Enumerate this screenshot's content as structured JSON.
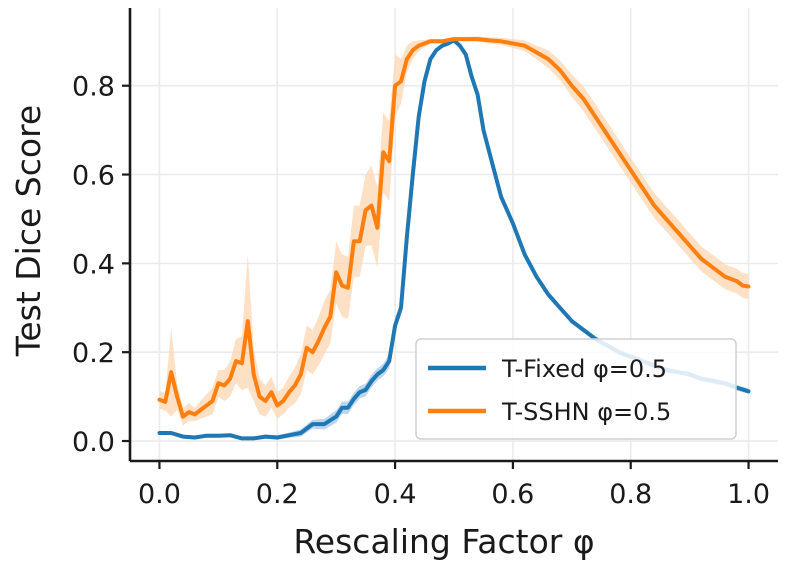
{
  "chart_data": {
    "type": "line",
    "title": "",
    "xlabel": "Rescaling Factor φ",
    "ylabel": "Test Dice Score",
    "xlim": [
      -0.05,
      1.05
    ],
    "ylim": [
      -0.045,
      0.975
    ],
    "xticks": [
      0.0,
      0.2,
      0.4,
      0.6,
      0.8,
      1.0
    ],
    "xtick_labels": [
      "0.0",
      "0.2",
      "0.4",
      "0.6",
      "0.8",
      "1.0"
    ],
    "yticks": [
      0.0,
      0.2,
      0.4,
      0.6,
      0.8
    ],
    "ytick_labels": [
      "0.0",
      "0.2",
      "0.4",
      "0.6",
      "0.8"
    ],
    "grid": true,
    "legend_position": "lower-right",
    "series": [
      {
        "name": "T-Fixed φ=0.5",
        "color": "#1f77b4",
        "band_color": "#a6c8e8",
        "x": [
          0.0,
          0.02,
          0.04,
          0.06,
          0.08,
          0.1,
          0.12,
          0.14,
          0.16,
          0.18,
          0.2,
          0.22,
          0.24,
          0.26,
          0.28,
          0.3,
          0.31,
          0.32,
          0.33,
          0.34,
          0.35,
          0.36,
          0.37,
          0.38,
          0.39,
          0.4,
          0.41,
          0.42,
          0.43,
          0.44,
          0.45,
          0.46,
          0.47,
          0.48,
          0.49,
          0.5,
          0.51,
          0.52,
          0.53,
          0.54,
          0.55,
          0.56,
          0.57,
          0.58,
          0.59,
          0.6,
          0.62,
          0.64,
          0.66,
          0.68,
          0.7,
          0.72,
          0.74,
          0.76,
          0.78,
          0.8,
          0.82,
          0.84,
          0.86,
          0.88,
          0.9,
          0.92,
          0.94,
          0.96,
          0.98,
          1.0
        ],
        "y": [
          0.018,
          0.018,
          0.01,
          0.008,
          0.012,
          0.012,
          0.013,
          0.006,
          0.006,
          0.01,
          0.008,
          0.013,
          0.018,
          0.038,
          0.038,
          0.055,
          0.075,
          0.075,
          0.095,
          0.11,
          0.115,
          0.135,
          0.15,
          0.16,
          0.18,
          0.26,
          0.3,
          0.46,
          0.6,
          0.73,
          0.81,
          0.86,
          0.88,
          0.89,
          0.895,
          0.902,
          0.89,
          0.87,
          0.82,
          0.78,
          0.7,
          0.65,
          0.6,
          0.55,
          0.52,
          0.49,
          0.42,
          0.37,
          0.33,
          0.3,
          0.27,
          0.25,
          0.23,
          0.215,
          0.2,
          0.19,
          0.18,
          0.17,
          0.16,
          0.155,
          0.15,
          0.14,
          0.135,
          0.13,
          0.12,
          0.112
        ],
        "band": [
          0.004,
          0.004,
          0.004,
          0.004,
          0.004,
          0.004,
          0.004,
          0.004,
          0.004,
          0.005,
          0.005,
          0.006,
          0.008,
          0.01,
          0.012,
          0.014,
          0.014,
          0.014,
          0.014,
          0.014,
          0.014,
          0.014,
          0.014,
          0.014,
          0.016,
          0.016,
          0.016,
          0.014,
          0.012,
          0.01,
          0.008,
          0.006,
          0.005,
          0.005,
          0.004,
          0.004,
          0.004,
          0.005,
          0.005,
          0.006,
          0.006,
          0.006,
          0.006,
          0.006,
          0.006,
          0.006,
          0.006,
          0.006,
          0.006,
          0.006,
          0.006,
          0.006,
          0.006,
          0.006,
          0.006,
          0.006,
          0.006,
          0.006,
          0.006,
          0.006,
          0.006,
          0.006,
          0.006,
          0.006,
          0.006,
          0.006
        ]
      },
      {
        "name": "T-SSHN φ=0.5",
        "color": "#ff7f0e",
        "band_color": "#fdd5b1",
        "x": [
          0.0,
          0.01,
          0.02,
          0.03,
          0.04,
          0.05,
          0.06,
          0.07,
          0.08,
          0.09,
          0.1,
          0.11,
          0.12,
          0.13,
          0.14,
          0.15,
          0.16,
          0.17,
          0.18,
          0.19,
          0.2,
          0.21,
          0.22,
          0.23,
          0.24,
          0.25,
          0.26,
          0.27,
          0.28,
          0.29,
          0.3,
          0.31,
          0.32,
          0.33,
          0.34,
          0.35,
          0.36,
          0.37,
          0.38,
          0.39,
          0.4,
          0.41,
          0.42,
          0.43,
          0.44,
          0.45,
          0.46,
          0.47,
          0.48,
          0.5,
          0.52,
          0.54,
          0.56,
          0.58,
          0.6,
          0.62,
          0.64,
          0.66,
          0.68,
          0.7,
          0.72,
          0.74,
          0.76,
          0.78,
          0.8,
          0.82,
          0.84,
          0.86,
          0.88,
          0.9,
          0.92,
          0.94,
          0.96,
          0.98,
          0.99,
          1.0
        ],
        "y": [
          0.093,
          0.088,
          0.155,
          0.1,
          0.055,
          0.065,
          0.06,
          0.07,
          0.08,
          0.09,
          0.13,
          0.125,
          0.14,
          0.18,
          0.175,
          0.27,
          0.15,
          0.1,
          0.09,
          0.11,
          0.08,
          0.09,
          0.11,
          0.125,
          0.15,
          0.21,
          0.2,
          0.225,
          0.255,
          0.28,
          0.38,
          0.35,
          0.345,
          0.45,
          0.45,
          0.52,
          0.53,
          0.48,
          0.65,
          0.63,
          0.8,
          0.81,
          0.86,
          0.88,
          0.89,
          0.895,
          0.9,
          0.9,
          0.9,
          0.905,
          0.905,
          0.905,
          0.902,
          0.9,
          0.895,
          0.89,
          0.875,
          0.86,
          0.835,
          0.8,
          0.77,
          0.73,
          0.69,
          0.65,
          0.61,
          0.57,
          0.53,
          0.5,
          0.47,
          0.44,
          0.41,
          0.39,
          0.37,
          0.36,
          0.35,
          0.348
        ],
        "band": [
          0.02,
          0.02,
          0.1,
          0.03,
          0.02,
          0.02,
          0.015,
          0.02,
          0.025,
          0.03,
          0.03,
          0.035,
          0.04,
          0.05,
          0.06,
          0.15,
          0.06,
          0.04,
          0.035,
          0.035,
          0.03,
          0.03,
          0.035,
          0.04,
          0.045,
          0.05,
          0.05,
          0.055,
          0.06,
          0.06,
          0.07,
          0.07,
          0.07,
          0.08,
          0.08,
          0.08,
          0.09,
          0.09,
          0.09,
          0.09,
          0.07,
          0.05,
          0.03,
          0.02,
          0.012,
          0.008,
          0.006,
          0.005,
          0.005,
          0.005,
          0.005,
          0.006,
          0.007,
          0.008,
          0.01,
          0.012,
          0.015,
          0.02,
          0.022,
          0.025,
          0.028,
          0.028,
          0.028,
          0.028,
          0.028,
          0.028,
          0.028,
          0.028,
          0.028,
          0.028,
          0.028,
          0.028,
          0.028,
          0.028,
          0.028,
          0.028
        ]
      }
    ]
  }
}
